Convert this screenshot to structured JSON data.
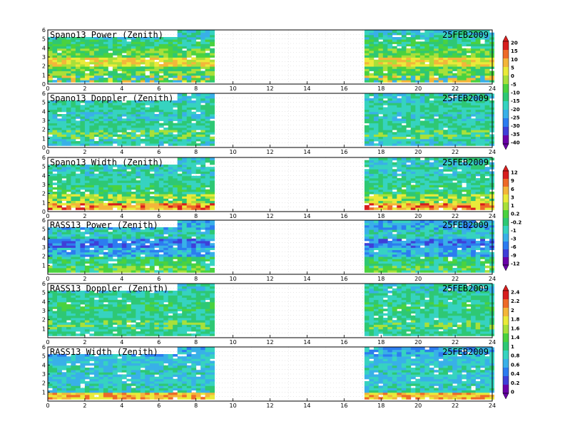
{
  "figure": {
    "colorbar_colors": [
      "#6a00a8",
      "#3f3fd8",
      "#2c7cf0",
      "#39b0e8",
      "#36d3c0",
      "#2ec874",
      "#4ad23f",
      "#a8e03a",
      "#eaea3a",
      "#f4b63a",
      "#ee6a28",
      "#d81e1e"
    ]
  },
  "chart_data": [
    {
      "type": "heatmap",
      "title": "Spano13 Power (Zenith)",
      "date": "25FEB2009",
      "x_ticks": [
        "0",
        "2",
        "4",
        "6",
        "8",
        "10",
        "12",
        "14",
        "16",
        "18",
        "20",
        "22",
        "24"
      ],
      "y_ticks": [
        "0",
        "1",
        "2",
        "3",
        "4",
        "5",
        "6"
      ],
      "xlim": [
        0,
        24
      ],
      "ylim": [
        0,
        6
      ],
      "data_segments": [
        [
          0,
          9
        ],
        [
          17.1,
          24
        ]
      ],
      "colorbar_ticks": [
        "20",
        "15",
        "10",
        "5",
        "0",
        "-5",
        "-10",
        "-15",
        "-20",
        "-25",
        "-30",
        "-35",
        "-40"
      ]
    },
    {
      "type": "heatmap",
      "title": "Spano13 Doppler (Zenith)",
      "date": "25FEB2009",
      "x_ticks": [
        "0",
        "2",
        "4",
        "6",
        "8",
        "10",
        "12",
        "14",
        "16",
        "18",
        "20",
        "22",
        "24"
      ],
      "y_ticks": [
        "0",
        "1",
        "2",
        "3",
        "4",
        "5",
        "6"
      ],
      "xlim": [
        0,
        24
      ],
      "ylim": [
        0,
        6
      ],
      "data_segments": [
        [
          0,
          9
        ],
        [
          17.1,
          24
        ]
      ]
    },
    {
      "type": "heatmap",
      "title": "Spano13 Width (Zenith)",
      "date": "25FEB2009",
      "x_ticks": [
        "0",
        "2",
        "4",
        "6",
        "8",
        "10",
        "12",
        "14",
        "16",
        "18",
        "20",
        "22",
        "24"
      ],
      "y_ticks": [
        "0",
        "1",
        "2",
        "3",
        "4",
        "5",
        "6"
      ],
      "xlim": [
        0,
        24
      ],
      "ylim": [
        0,
        6
      ],
      "data_segments": [
        [
          0,
          9
        ],
        [
          17.1,
          24
        ]
      ],
      "colorbar_ticks": [
        "12",
        "9",
        "6",
        "3",
        "1",
        "0.2",
        "-0.2",
        "-1",
        "-3",
        "-6",
        "-9",
        "-12"
      ]
    },
    {
      "type": "heatmap",
      "title": "RASS13 Power (Zenith)",
      "date": "25FEB2009",
      "x_ticks": [
        "0",
        "2",
        "4",
        "6",
        "8",
        "10",
        "12",
        "14",
        "16",
        "18",
        "20",
        "22",
        "24"
      ],
      "y_ticks": [
        "1",
        "2",
        "3",
        "4",
        "5",
        "6"
      ],
      "xlim": [
        0,
        24
      ],
      "ylim": [
        0,
        6
      ],
      "data_segments": [
        [
          0,
          9
        ],
        [
          17.1,
          24
        ]
      ]
    },
    {
      "type": "heatmap",
      "title": "RASS13 Doppler (Zenith)",
      "date": "25FEB2009",
      "x_ticks": [
        "0",
        "2",
        "4",
        "6",
        "8",
        "10",
        "12",
        "14",
        "16",
        "18",
        "20",
        "22",
        "24"
      ],
      "y_ticks": [
        "1",
        "2",
        "3",
        "4",
        "5",
        "6"
      ],
      "xlim": [
        0,
        24
      ],
      "ylim": [
        0,
        6
      ],
      "data_segments": [
        [
          0,
          9
        ],
        [
          17.1,
          24
        ]
      ],
      "colorbar_ticks": [
        "2.4",
        "2.2",
        "2",
        "1.8",
        "1.6",
        "1.4",
        "1",
        "0.8",
        "0.6",
        "0.4",
        "0.2",
        "0"
      ]
    },
    {
      "type": "heatmap",
      "title": "RASS13 Width (Zenith)",
      "date": "25FEB2009",
      "x_ticks": [
        "0",
        "2",
        "4",
        "6",
        "8",
        "10",
        "12",
        "14",
        "16",
        "18",
        "20",
        "22",
        "24"
      ],
      "y_ticks": [
        "1",
        "2",
        "3",
        "4",
        "5",
        "6"
      ],
      "xlim": [
        0,
        24
      ],
      "ylim": [
        0,
        6
      ],
      "data_segments": [
        [
          0,
          9
        ],
        [
          17.1,
          24
        ]
      ]
    }
  ]
}
